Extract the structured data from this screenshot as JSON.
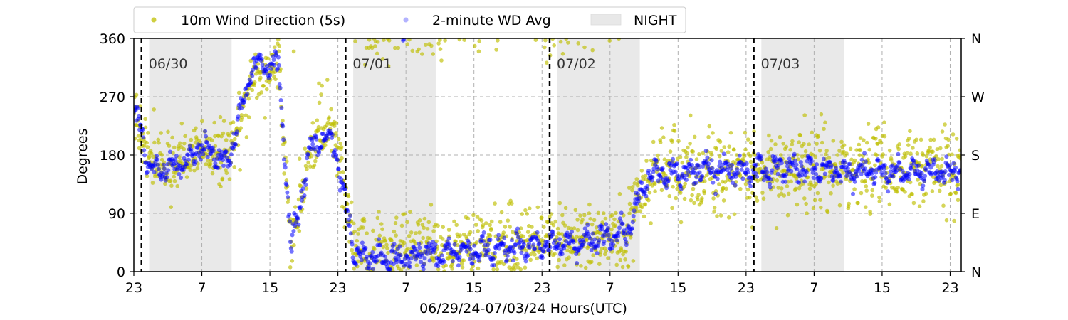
{
  "chart_data": {
    "type": "scatter",
    "xlabel": "06/29/24-07/03/24  Hours(UTC)",
    "ylabel": "Degrees",
    "ylim": [
      0,
      360
    ],
    "xlim_hours_utc": [
      "06/29/24 23:00",
      "07/03/24 23:30"
    ],
    "y_ticks": [
      0,
      90,
      180,
      270,
      360
    ],
    "y_ticks_right": [
      "N",
      "E",
      "S",
      "W",
      "N"
    ],
    "x_tick_labels": [
      "23",
      "7",
      "15",
      "23",
      "7",
      "15",
      "23",
      "7",
      "15",
      "23",
      "7",
      "15",
      "23"
    ],
    "x_tick_hours_from_start": [
      0,
      8,
      16,
      24,
      32,
      40,
      48,
      56,
      64,
      72,
      80,
      88,
      96
    ],
    "grid": true,
    "legend_placement": "top, above plot",
    "legend": [
      "10m Wind Direction (5s)",
      "2-minute WD Avg",
      "NIGHT"
    ],
    "day_markers": [
      {
        "label": "06/30",
        "hour_from_start": 0.9
      },
      {
        "label": "07/01",
        "hour_from_start": 24.9
      },
      {
        "label": "07/02",
        "hour_from_start": 48.9
      },
      {
        "label": "07/03",
        "hour_from_start": 72.9
      }
    ],
    "night_shading_hours_from_start": [
      [
        1.8,
        11.5
      ],
      [
        25.8,
        35.5
      ],
      [
        49.8,
        59.5
      ],
      [
        73.8,
        83.5
      ]
    ],
    "series": [
      {
        "name": "10m Wind Direction (5s)",
        "color": "#bfbf00",
        "approx_trend": [
          {
            "h": 0,
            "deg": 250
          },
          {
            "h": 2,
            "deg": 175
          },
          {
            "h": 5,
            "deg": 165
          },
          {
            "h": 8,
            "deg": 195
          },
          {
            "h": 11,
            "deg": 170
          },
          {
            "h": 14,
            "deg": 300
          },
          {
            "h": 17,
            "deg": 320
          },
          {
            "h": 18.5,
            "deg": 40
          },
          {
            "h": 21,
            "deg": 200
          },
          {
            "h": 23.5,
            "deg": 220
          },
          {
            "h": 26,
            "deg": 25
          },
          {
            "h": 30,
            "deg": 25
          },
          {
            "h": 38,
            "deg": 35
          },
          {
            "h": 46,
            "deg": 45
          },
          {
            "h": 52,
            "deg": 45
          },
          {
            "h": 58,
            "deg": 65
          },
          {
            "h": 60.5,
            "deg": 150
          },
          {
            "h": 66,
            "deg": 160
          },
          {
            "h": 72,
            "deg": 150
          },
          {
            "h": 78,
            "deg": 165
          },
          {
            "h": 84,
            "deg": 155
          },
          {
            "h": 90,
            "deg": 160
          },
          {
            "h": 96,
            "deg": 160
          }
        ]
      },
      {
        "name": "2-minute WD Avg",
        "color": "#0000ff",
        "approx_trend": [
          {
            "h": 0,
            "deg": 250
          },
          {
            "h": 2,
            "deg": 160
          },
          {
            "h": 5,
            "deg": 160
          },
          {
            "h": 8,
            "deg": 195
          },
          {
            "h": 11,
            "deg": 165
          },
          {
            "h": 14,
            "deg": 320
          },
          {
            "h": 17,
            "deg": 320
          },
          {
            "h": 18.5,
            "deg": 40
          },
          {
            "h": 21,
            "deg": 200
          },
          {
            "h": 23.5,
            "deg": 200
          },
          {
            "h": 26,
            "deg": 25
          },
          {
            "h": 30,
            "deg": 20
          },
          {
            "h": 38,
            "deg": 30
          },
          {
            "h": 46,
            "deg": 40
          },
          {
            "h": 52,
            "deg": 45
          },
          {
            "h": 58,
            "deg": 60
          },
          {
            "h": 60.5,
            "deg": 150
          },
          {
            "h": 66,
            "deg": 155
          },
          {
            "h": 72,
            "deg": 155
          },
          {
            "h": 78,
            "deg": 160
          },
          {
            "h": 84,
            "deg": 155
          },
          {
            "h": 90,
            "deg": 155
          },
          {
            "h": 96,
            "deg": 155
          }
        ]
      }
    ]
  }
}
